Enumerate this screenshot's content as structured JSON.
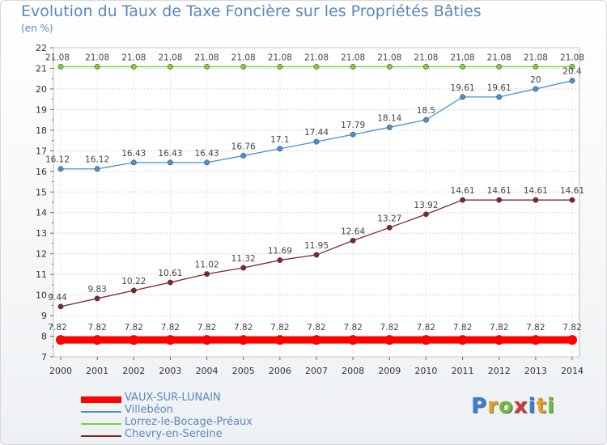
{
  "title": "Evolution du Taux de Taxe Foncière sur les Propriétés Bâties",
  "unit_label": "(en %)",
  "chart_data": {
    "type": "line",
    "title": "Evolution du Taux de Taxe Foncière sur les Propriétés Bâties",
    "ylabel": "(en %)",
    "xlabel": "",
    "x": [
      2000,
      2001,
      2002,
      2003,
      2004,
      2005,
      2006,
      2007,
      2008,
      2009,
      2010,
      2011,
      2012,
      2013,
      2014
    ],
    "ylim": [
      7,
      22
    ],
    "y_ticks": [
      7,
      8,
      9,
      10,
      11,
      12,
      13,
      14,
      15,
      16,
      17,
      18,
      19,
      20,
      21,
      22
    ],
    "grid": true,
    "legend_position": "bottom-left",
    "series": [
      {
        "name": "VAUX-SUR-LUNAIN",
        "color": "#ff0000",
        "values": [
          7.82,
          7.82,
          7.82,
          7.82,
          7.82,
          7.82,
          7.82,
          7.82,
          7.82,
          7.82,
          7.82,
          7.82,
          7.82,
          7.82,
          7.82
        ],
        "labels": [
          "7.82",
          "7.82",
          "7.82",
          "7.82",
          "7.82",
          "7.82",
          "7.82",
          "7.82",
          "7.82",
          "7.82",
          "7.82",
          "7.82",
          "7.82",
          "7.82",
          "7.82"
        ]
      },
      {
        "name": "Villebéon",
        "color": "#4a8fd0",
        "values": [
          16.12,
          16.12,
          16.43,
          16.43,
          16.43,
          16.76,
          17.1,
          17.44,
          17.79,
          18.14,
          18.5,
          19.61,
          19.61,
          20,
          20.4
        ],
        "labels": [
          "16.12",
          "16.12",
          "16.43",
          "16.43",
          "16.43",
          "16.76",
          "17.1",
          "17.44",
          "17.79",
          "18.14",
          "18.5",
          "19.61",
          "19.61",
          "20",
          "20.4"
        ]
      },
      {
        "name": "Lorrez-le-Bocage-Préaux",
        "color": "#7ccd3f",
        "values": [
          21.08,
          21.08,
          21.08,
          21.08,
          21.08,
          21.08,
          21.08,
          21.08,
          21.08,
          21.08,
          21.08,
          21.08,
          21.08,
          21.08,
          21.08
        ],
        "labels": [
          "21.08",
          "21.08",
          "21.08",
          "21.08",
          "21.08",
          "21.08",
          "21.08",
          "21.08",
          "21.08",
          "21.08",
          "21.08",
          "21.08",
          "21.08",
          "21.08",
          "21.08"
        ]
      },
      {
        "name": "Chevry-en-Sereine",
        "color": "#7a2a2a",
        "values": [
          9.44,
          9.83,
          10.22,
          10.61,
          11.02,
          11.32,
          11.69,
          11.95,
          12.64,
          13.27,
          13.92,
          14.61,
          14.61,
          14.61,
          14.61
        ],
        "labels": [
          "9.44",
          "9.83",
          "10.22",
          "10.61",
          "11.02",
          "11.32",
          "11.69",
          "11.95",
          "12.64",
          "13.27",
          "13.92",
          "14.61",
          "14.61",
          "14.61",
          "14.61"
        ]
      }
    ]
  },
  "legend": [
    {
      "label": "VAUX-SUR-LUNAIN",
      "color": "#ff0000"
    },
    {
      "label": "Villebéon",
      "color": "#4a8fd0"
    },
    {
      "label": "Lorrez-le-Bocage-Préaux",
      "color": "#7ccd3f"
    },
    {
      "label": "Chevry-en-Sereine",
      "color": "#7a2a2a"
    }
  ],
  "logo": {
    "letters": [
      "P",
      "r",
      "o",
      "x",
      "i",
      "t",
      "i"
    ],
    "colors": [
      "#3a7fd0",
      "#e8a020",
      "#6cbf3c",
      "#d03a3a",
      "#3a7fd0",
      "#e8a020",
      "#6cbf3c"
    ]
  }
}
